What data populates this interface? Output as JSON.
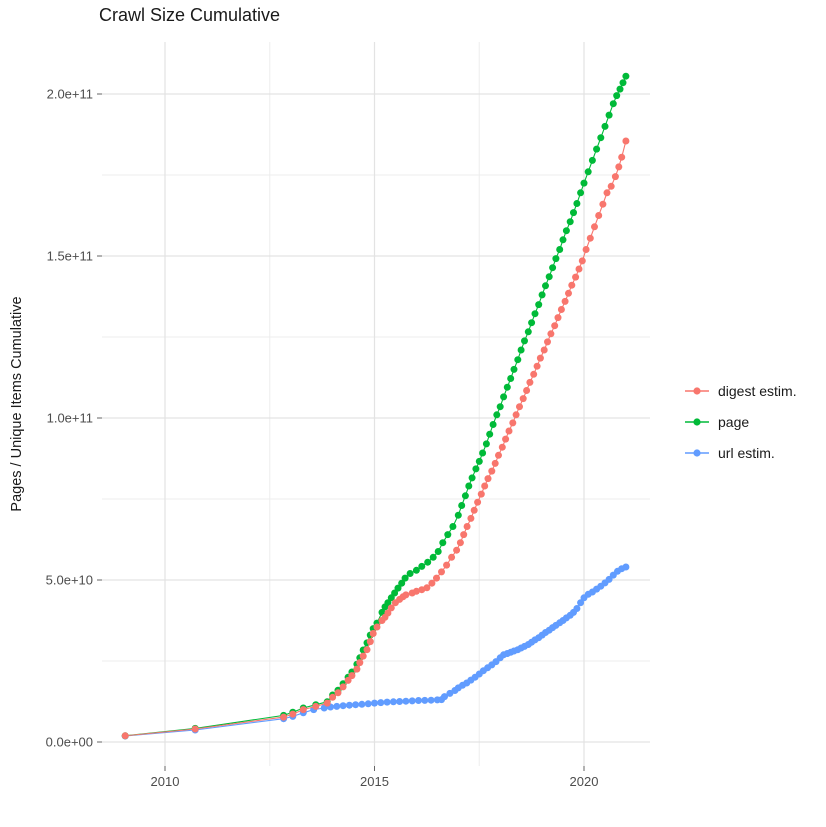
{
  "title": "Crawl Size Cumulative",
  "legend": {
    "items": [
      {
        "label": "digest estim.",
        "color": "#F8766D"
      },
      {
        "label": "page",
        "color": "#00BA38"
      },
      {
        "label": "url estim.",
        "color": "#619CFF"
      }
    ]
  },
  "chart_data": {
    "type": "line",
    "title": "Crawl Size Cumulative",
    "xlabel": "",
    "ylabel": "Pages / Unique Items Cumulative",
    "x_unit": "year",
    "y_unit": "items, values stored in billions (1e9)",
    "xlim": [
      2008.5,
      2021.6
    ],
    "ylim_billions": [
      -7,
      216
    ],
    "grid": true,
    "legend_position": "right",
    "x_ticks": [
      {
        "v": 2010,
        "label": "2010"
      },
      {
        "v": 2015,
        "label": "2015"
      },
      {
        "v": 2020,
        "label": "2020"
      }
    ],
    "x_minor": [
      2012.5,
      2017.5
    ],
    "y_ticks": [
      {
        "v": 0,
        "label": "0.0e+00"
      },
      {
        "v": 50,
        "label": "5.0e+10"
      },
      {
        "v": 100,
        "label": "1.0e+11"
      },
      {
        "v": 150,
        "label": "1.5e+11"
      },
      {
        "v": 200,
        "label": "2.0e+11"
      }
    ],
    "y_minor": [
      25,
      75,
      125,
      175
    ],
    "series": [
      {
        "name": "digest estim.",
        "color": "#F8766D",
        "points": [
          [
            2009.05,
            1.9
          ],
          [
            2010.72,
            4.0
          ],
          [
            2012.83,
            7.7
          ],
          [
            2013.05,
            8.6
          ],
          [
            2013.3,
            10.0
          ],
          [
            2013.6,
            11.0
          ],
          [
            2013.87,
            12.0
          ],
          [
            2014.0,
            13.8
          ],
          [
            2014.13,
            15.2
          ],
          [
            2014.25,
            17.0
          ],
          [
            2014.37,
            19.0
          ],
          [
            2014.46,
            20.5
          ],
          [
            2014.58,
            22.5
          ],
          [
            2014.65,
            24.5
          ],
          [
            2014.73,
            26.5
          ],
          [
            2014.82,
            28.5
          ],
          [
            2014.9,
            31.0
          ],
          [
            2014.97,
            33.5
          ],
          [
            2015.06,
            35.5
          ],
          [
            2015.18,
            37.5
          ],
          [
            2015.25,
            38.5
          ],
          [
            2015.32,
            39.8
          ],
          [
            2015.4,
            41.4
          ],
          [
            2015.5,
            43.0
          ],
          [
            2015.6,
            44.0
          ],
          [
            2015.68,
            44.8
          ],
          [
            2015.75,
            45.4
          ],
          [
            2015.9,
            46.0
          ],
          [
            2016.0,
            46.5
          ],
          [
            2016.13,
            47.0
          ],
          [
            2016.25,
            47.6
          ],
          [
            2016.37,
            49.0
          ],
          [
            2016.48,
            50.6
          ],
          [
            2016.6,
            52.5
          ],
          [
            2016.72,
            54.6
          ],
          [
            2016.84,
            57.0
          ],
          [
            2016.96,
            59.2
          ],
          [
            2017.05,
            61.5
          ],
          [
            2017.13,
            64.0
          ],
          [
            2017.21,
            66.5
          ],
          [
            2017.3,
            69.0
          ],
          [
            2017.38,
            71.5
          ],
          [
            2017.46,
            74.0
          ],
          [
            2017.55,
            76.5
          ],
          [
            2017.63,
            79.0
          ],
          [
            2017.71,
            81.3
          ],
          [
            2017.8,
            83.6
          ],
          [
            2017.88,
            86.0
          ],
          [
            2017.96,
            88.5
          ],
          [
            2018.05,
            91.0
          ],
          [
            2018.13,
            93.5
          ],
          [
            2018.21,
            96.0
          ],
          [
            2018.3,
            98.5
          ],
          [
            2018.38,
            101.0
          ],
          [
            2018.46,
            103.5
          ],
          [
            2018.55,
            106.0
          ],
          [
            2018.63,
            108.5
          ],
          [
            2018.71,
            111.0
          ],
          [
            2018.8,
            113.5
          ],
          [
            2018.88,
            116.0
          ],
          [
            2018.96,
            118.5
          ],
          [
            2019.05,
            121.0
          ],
          [
            2019.13,
            123.5
          ],
          [
            2019.21,
            126.0
          ],
          [
            2019.3,
            128.5
          ],
          [
            2019.38,
            131.0
          ],
          [
            2019.46,
            133.5
          ],
          [
            2019.55,
            136.0
          ],
          [
            2019.63,
            138.5
          ],
          [
            2019.71,
            141.0
          ],
          [
            2019.8,
            143.5
          ],
          [
            2019.88,
            146.0
          ],
          [
            2019.96,
            148.5
          ],
          [
            2020.05,
            152.0
          ],
          [
            2020.15,
            155.5
          ],
          [
            2020.25,
            159.0
          ],
          [
            2020.35,
            162.5
          ],
          [
            2020.45,
            166.0
          ],
          [
            2020.55,
            169.5
          ],
          [
            2020.65,
            171.5
          ],
          [
            2020.75,
            174.5
          ],
          [
            2020.83,
            177.5
          ],
          [
            2020.9,
            180.5
          ],
          [
            2021.0,
            185.5
          ]
        ]
      },
      {
        "name": "page",
        "color": "#00BA38",
        "points": [
          [
            2009.05,
            1.9
          ],
          [
            2010.72,
            4.2
          ],
          [
            2012.83,
            8.2
          ],
          [
            2013.05,
            9.2
          ],
          [
            2013.3,
            10.5
          ],
          [
            2013.6,
            11.5
          ],
          [
            2013.87,
            12.4
          ],
          [
            2014.0,
            14.5
          ],
          [
            2014.13,
            16.0
          ],
          [
            2014.25,
            18.0
          ],
          [
            2014.37,
            20.0
          ],
          [
            2014.46,
            21.6
          ],
          [
            2014.58,
            24.0
          ],
          [
            2014.65,
            26.0
          ],
          [
            2014.73,
            28.4
          ],
          [
            2014.82,
            30.6
          ],
          [
            2014.9,
            33.0
          ],
          [
            2014.97,
            35.0
          ],
          [
            2015.06,
            36.7
          ],
          [
            2015.18,
            40.0
          ],
          [
            2015.25,
            41.7
          ],
          [
            2015.32,
            43.0
          ],
          [
            2015.4,
            44.5
          ],
          [
            2015.48,
            46.0
          ],
          [
            2015.56,
            47.5
          ],
          [
            2015.65,
            49.0
          ],
          [
            2015.73,
            50.6
          ],
          [
            2015.85,
            52.0
          ],
          [
            2016.0,
            53.0
          ],
          [
            2016.13,
            54.2
          ],
          [
            2016.27,
            55.5
          ],
          [
            2016.4,
            57.0
          ],
          [
            2016.52,
            58.8
          ],
          [
            2016.63,
            61.5
          ],
          [
            2016.75,
            64.0
          ],
          [
            2016.87,
            66.5
          ],
          [
            2017.0,
            70.0
          ],
          [
            2017.08,
            73.0
          ],
          [
            2017.17,
            76.0
          ],
          [
            2017.25,
            79.0
          ],
          [
            2017.33,
            81.5
          ],
          [
            2017.42,
            84.3
          ],
          [
            2017.5,
            86.6
          ],
          [
            2017.58,
            89.2
          ],
          [
            2017.67,
            92.0
          ],
          [
            2017.75,
            95.0
          ],
          [
            2017.83,
            98.0
          ],
          [
            2017.92,
            101.0
          ],
          [
            2018.0,
            103.5
          ],
          [
            2018.08,
            106.5
          ],
          [
            2018.17,
            109.5
          ],
          [
            2018.25,
            112.2
          ],
          [
            2018.33,
            115.0
          ],
          [
            2018.42,
            118.0
          ],
          [
            2018.5,
            121.0
          ],
          [
            2018.58,
            123.8
          ],
          [
            2018.67,
            126.6
          ],
          [
            2018.75,
            129.4
          ],
          [
            2018.83,
            132.2
          ],
          [
            2018.92,
            135.0
          ],
          [
            2019.0,
            138.0
          ],
          [
            2019.08,
            140.8
          ],
          [
            2019.17,
            143.6
          ],
          [
            2019.25,
            146.4
          ],
          [
            2019.33,
            149.2
          ],
          [
            2019.42,
            152.0
          ],
          [
            2019.5,
            155.0
          ],
          [
            2019.58,
            157.8
          ],
          [
            2019.67,
            160.6
          ],
          [
            2019.75,
            163.4
          ],
          [
            2019.83,
            166.2
          ],
          [
            2019.92,
            169.5
          ],
          [
            2020.0,
            172.5
          ],
          [
            2020.1,
            176.0
          ],
          [
            2020.2,
            179.5
          ],
          [
            2020.3,
            183.0
          ],
          [
            2020.4,
            186.5
          ],
          [
            2020.5,
            190.0
          ],
          [
            2020.6,
            193.5
          ],
          [
            2020.7,
            197.0
          ],
          [
            2020.78,
            199.5
          ],
          [
            2020.86,
            201.5
          ],
          [
            2020.93,
            203.5
          ],
          [
            2021.0,
            205.5
          ]
        ]
      },
      {
        "name": "url estim.",
        "color": "#619CFF",
        "points": [
          [
            2009.05,
            1.85
          ],
          [
            2010.72,
            3.7
          ],
          [
            2012.83,
            7.2
          ],
          [
            2013.05,
            7.9
          ],
          [
            2013.3,
            9.0
          ],
          [
            2013.55,
            10.0
          ],
          [
            2013.8,
            10.5
          ],
          [
            2013.95,
            10.8
          ],
          [
            2014.1,
            11.0
          ],
          [
            2014.25,
            11.2
          ],
          [
            2014.4,
            11.35
          ],
          [
            2014.55,
            11.5
          ],
          [
            2014.7,
            11.65
          ],
          [
            2014.85,
            11.8
          ],
          [
            2015.0,
            12.0
          ],
          [
            2015.15,
            12.15
          ],
          [
            2015.3,
            12.3
          ],
          [
            2015.45,
            12.4
          ],
          [
            2015.6,
            12.5
          ],
          [
            2015.75,
            12.6
          ],
          [
            2015.9,
            12.7
          ],
          [
            2016.05,
            12.8
          ],
          [
            2016.2,
            12.85
          ],
          [
            2016.35,
            12.9
          ],
          [
            2016.5,
            13.0
          ],
          [
            2016.6,
            13.1
          ],
          [
            2016.67,
            14.0
          ],
          [
            2016.8,
            15.0
          ],
          [
            2016.92,
            15.9
          ],
          [
            2017.0,
            16.7
          ],
          [
            2017.1,
            17.5
          ],
          [
            2017.2,
            18.2
          ],
          [
            2017.3,
            19.1
          ],
          [
            2017.4,
            20.0
          ],
          [
            2017.5,
            21.0
          ],
          [
            2017.6,
            22.0
          ],
          [
            2017.7,
            22.9
          ],
          [
            2017.8,
            23.8
          ],
          [
            2017.9,
            24.8
          ],
          [
            2018.0,
            26.0
          ],
          [
            2018.08,
            26.9
          ],
          [
            2018.17,
            27.3
          ],
          [
            2018.25,
            27.7
          ],
          [
            2018.33,
            28.1
          ],
          [
            2018.42,
            28.5
          ],
          [
            2018.5,
            29.0
          ],
          [
            2018.58,
            29.5
          ],
          [
            2018.67,
            30.1
          ],
          [
            2018.75,
            30.8
          ],
          [
            2018.83,
            31.5
          ],
          [
            2018.92,
            32.2
          ],
          [
            2019.0,
            33.0
          ],
          [
            2019.08,
            33.8
          ],
          [
            2019.17,
            34.5
          ],
          [
            2019.25,
            35.3
          ],
          [
            2019.33,
            36.0
          ],
          [
            2019.42,
            36.8
          ],
          [
            2019.5,
            37.5
          ],
          [
            2019.58,
            38.3
          ],
          [
            2019.67,
            39.1
          ],
          [
            2019.75,
            40.0
          ],
          [
            2019.83,
            41.2
          ],
          [
            2019.92,
            43.0
          ],
          [
            2020.0,
            44.5
          ],
          [
            2020.1,
            45.6
          ],
          [
            2020.2,
            46.3
          ],
          [
            2020.3,
            47.2
          ],
          [
            2020.4,
            48.1
          ],
          [
            2020.5,
            49.1
          ],
          [
            2020.6,
            50.2
          ],
          [
            2020.7,
            51.5
          ],
          [
            2020.8,
            52.7
          ],
          [
            2020.9,
            53.5
          ],
          [
            2021.0,
            54.0
          ]
        ]
      }
    ]
  }
}
